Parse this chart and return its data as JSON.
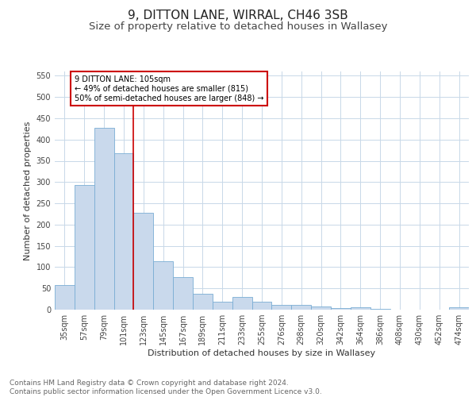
{
  "title1": "9, DITTON LANE, WIRRAL, CH46 3SB",
  "title2": "Size of property relative to detached houses in Wallasey",
  "xlabel": "Distribution of detached houses by size in Wallasey",
  "ylabel": "Number of detached properties",
  "categories": [
    "35sqm",
    "57sqm",
    "79sqm",
    "101sqm",
    "123sqm",
    "145sqm",
    "167sqm",
    "189sqm",
    "211sqm",
    "233sqm",
    "255sqm",
    "276sqm",
    "298sqm",
    "320sqm",
    "342sqm",
    "364sqm",
    "386sqm",
    "408sqm",
    "430sqm",
    "452sqm",
    "474sqm"
  ],
  "values": [
    57,
    293,
    428,
    367,
    228,
    113,
    76,
    38,
    18,
    29,
    18,
    11,
    11,
    8,
    3,
    5,
    2,
    0,
    0,
    0,
    5
  ],
  "bar_color": "#c9d9ec",
  "bar_edge_color": "#7aadd4",
  "vline_index": 3,
  "vline_color": "#cc0000",
  "annotation_text": "9 DITTON LANE: 105sqm\n← 49% of detached houses are smaller (815)\n50% of semi-detached houses are larger (848) →",
  "annotation_box_color": "#ffffff",
  "annotation_box_edge": "#cc0000",
  "ylim": [
    0,
    560
  ],
  "yticks": [
    0,
    50,
    100,
    150,
    200,
    250,
    300,
    350,
    400,
    450,
    500,
    550
  ],
  "bg_color": "#ffffff",
  "grid_color": "#c8d8e8",
  "footer_text": "Contains HM Land Registry data © Crown copyright and database right 2024.\nContains public sector information licensed under the Open Government Licence v3.0.",
  "title1_fontsize": 11,
  "title2_fontsize": 9.5,
  "axis_label_fontsize": 8,
  "tick_fontsize": 7,
  "footer_fontsize": 6.5
}
